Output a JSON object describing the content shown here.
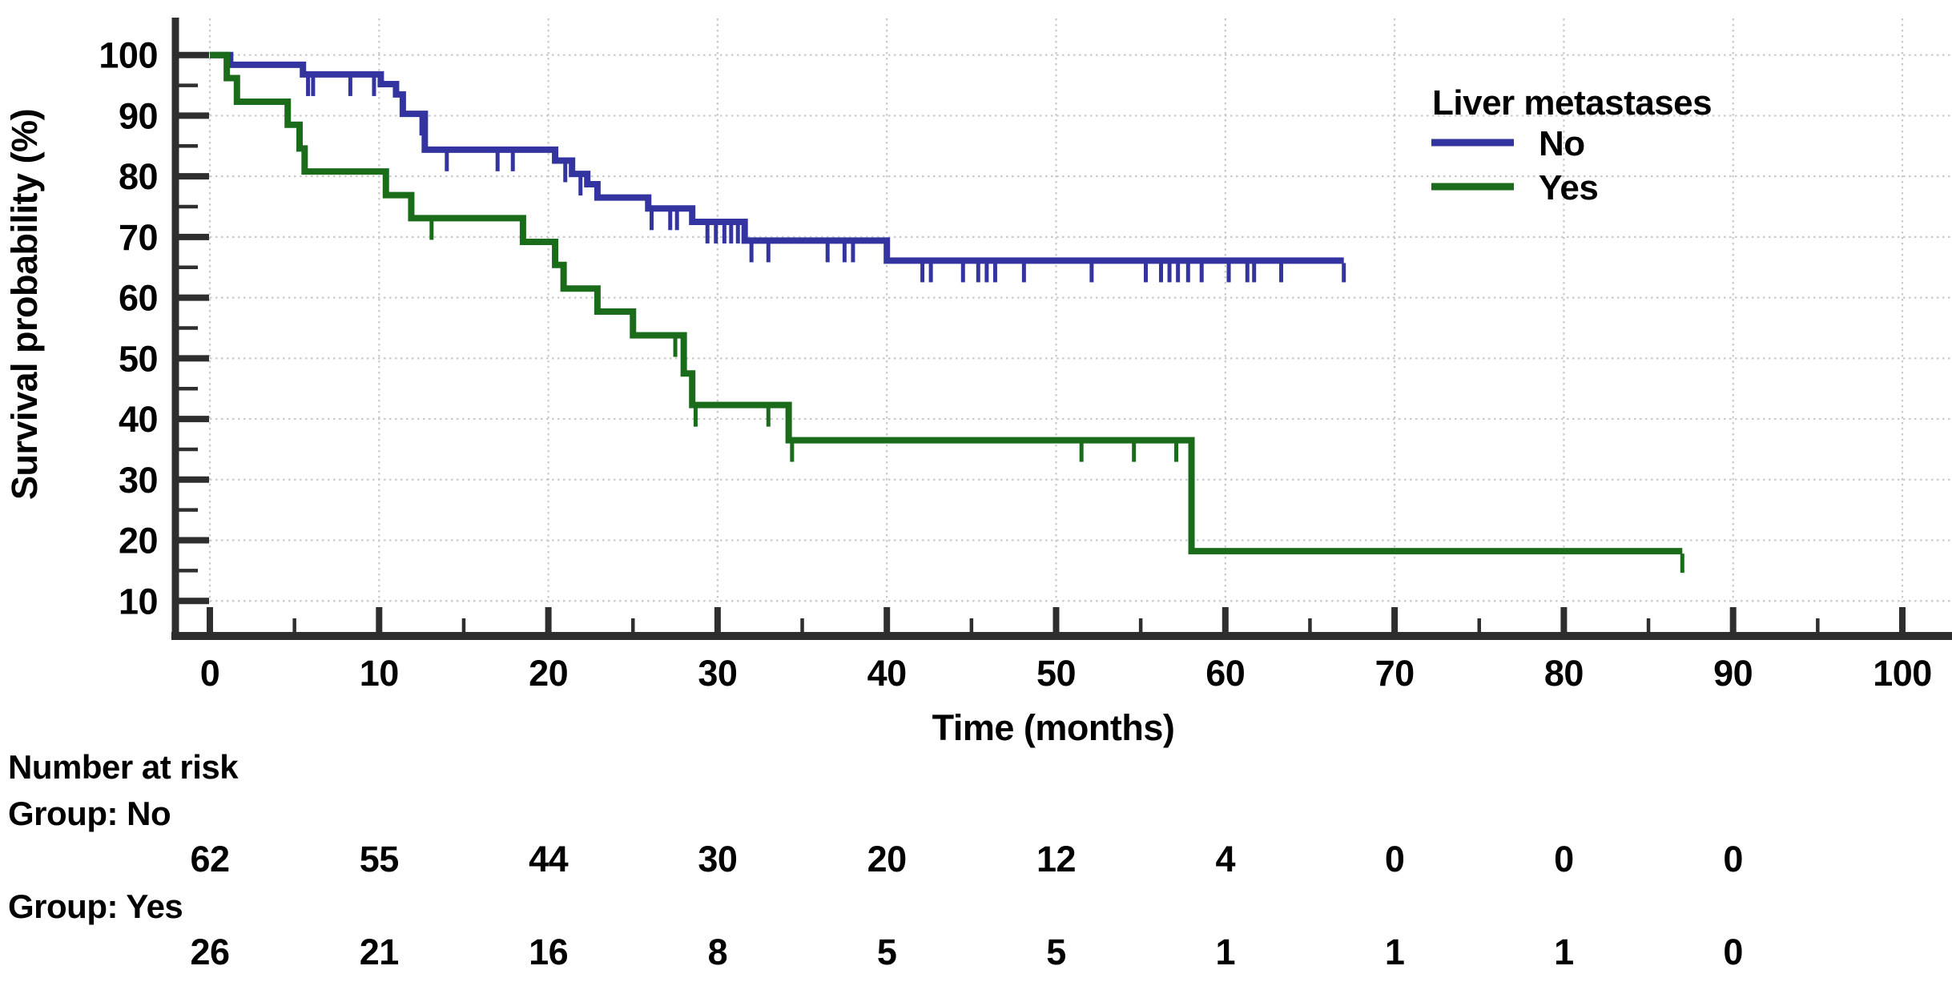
{
  "chart_data": {
    "type": "line",
    "subtype": "kaplan-meier-step",
    "title": "",
    "xlabel": "Time (months)",
    "ylabel": "Survival probability (%)",
    "xlim": [
      0,
      100
    ],
    "ylim": [
      10,
      100
    ],
    "x_ticks": [
      0,
      10,
      20,
      30,
      40,
      50,
      60,
      70,
      80,
      90,
      100
    ],
    "y_ticks": [
      10,
      20,
      30,
      40,
      50,
      60,
      70,
      80,
      90,
      100
    ],
    "grid": "dotted",
    "legend": {
      "title": "Liver metastases",
      "position": "top-right",
      "entries": [
        {
          "label": "No",
          "color": "#3434A0"
        },
        {
          "label": "Yes",
          "color": "#1A6B1A"
        }
      ]
    },
    "series": [
      {
        "name": "No",
        "color": "#3434A0",
        "steps": [
          [
            0,
            100
          ],
          [
            1.2,
            98.4
          ],
          [
            5.5,
            96.8
          ],
          [
            10.1,
            95.2
          ],
          [
            11.0,
            93.5
          ],
          [
            11.4,
            90.3
          ],
          [
            12.7,
            84.4
          ],
          [
            20.4,
            82.6
          ],
          [
            21.4,
            80.4
          ],
          [
            22.3,
            78.7
          ],
          [
            22.9,
            76.5
          ],
          [
            25.9,
            74.7
          ],
          [
            28.5,
            72.5
          ],
          [
            31.6,
            69.4
          ],
          [
            40.0,
            66.1
          ]
        ],
        "end_time": 67,
        "censor_times": [
          5.8,
          6.1,
          8.3,
          9.7,
          12.5,
          14.0,
          17.0,
          17.9,
          21.0,
          21.9,
          26.1,
          27.2,
          27.6,
          29.4,
          29.9,
          30.4,
          30.8,
          31.2,
          32.0,
          33.0,
          36.5,
          37.5,
          38.0,
          42.1,
          42.6,
          44.5,
          45.4,
          45.9,
          46.4,
          48.1,
          52.1,
          55.3,
          56.2,
          56.7,
          57.2,
          57.8,
          58.6,
          60.2,
          61.3,
          61.7,
          63.3,
          67.0
        ]
      },
      {
        "name": "Yes",
        "color": "#1A6B1A",
        "steps": [
          [
            0,
            100
          ],
          [
            1.0,
            96.2
          ],
          [
            1.6,
            92.3
          ],
          [
            4.6,
            88.5
          ],
          [
            5.3,
            84.6
          ],
          [
            5.6,
            80.8
          ],
          [
            10.4,
            76.9
          ],
          [
            11.9,
            73.1
          ],
          [
            18.5,
            69.2
          ],
          [
            20.4,
            65.4
          ],
          [
            20.9,
            61.5
          ],
          [
            22.9,
            57.7
          ],
          [
            25.0,
            53.8
          ],
          [
            28.0,
            47.5
          ],
          [
            28.5,
            42.3
          ],
          [
            34.2,
            36.5
          ],
          [
            58.0,
            18.2
          ]
        ],
        "end_time": 87,
        "censor_times": [
          13.1,
          27.5,
          28.7,
          33.0,
          34.4,
          51.5,
          54.6,
          57.1,
          87.0
        ]
      }
    ]
  },
  "risk_table": {
    "title": "Number at risk",
    "times": [
      0,
      10,
      20,
      30,
      40,
      50,
      60,
      70,
      80,
      90
    ],
    "groups": [
      {
        "label": "Group: No",
        "counts": [
          62,
          55,
          44,
          30,
          20,
          12,
          4,
          0,
          0,
          0
        ]
      },
      {
        "label": "Group: Yes",
        "counts": [
          26,
          21,
          16,
          8,
          5,
          5,
          1,
          1,
          1,
          0
        ]
      }
    ]
  },
  "colors": {
    "curve_no": "#3434A0",
    "curve_yes": "#1A6B1A",
    "risk_label": "#1C1C9E",
    "axis": "#2E2E2E",
    "grid": "#C9C9C9",
    "text": "#000000",
    "background": "#FFFFFF"
  }
}
